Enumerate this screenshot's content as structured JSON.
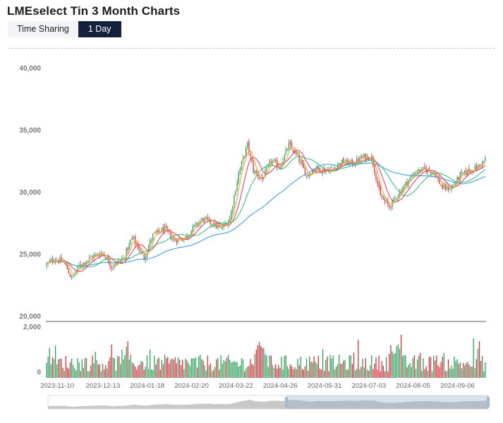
{
  "title": "LMEselect Tin 3 Month Charts",
  "tabs": [
    {
      "label": "Time Sharing",
      "active": false
    },
    {
      "label": "1 Day",
      "active": true
    }
  ],
  "colors": {
    "up": "#2ca05a",
    "down": "#dc2f3a",
    "ma5": "#f5a623",
    "ma10": "#e0407a",
    "ma20": "#35c47a",
    "ma60": "#3aa0e8",
    "active_tab_bg": "#13213f"
  },
  "chart_data": [
    {
      "type": "candlestick",
      "title": "",
      "y_ticks": [
        "40,000",
        "35,000",
        "30,000",
        "25,000",
        "20,000"
      ],
      "y_tick_values": [
        40000,
        35000,
        30000,
        25000,
        20000
      ],
      "ylim": [
        20000,
        40000
      ],
      "x_ticks": [
        "2023-11-10",
        "2023-12-13",
        "2024-01-18",
        "2024-02-20",
        "2024-03-22",
        "2024-04-26",
        "2024-05-31",
        "2024-07-03",
        "2024-08-05",
        "2024-09-06"
      ],
      "close_anchors": [
        [
          0,
          24100
        ],
        [
          5,
          24600
        ],
        [
          12,
          24300
        ],
        [
          17,
          23000
        ],
        [
          22,
          24000
        ],
        [
          30,
          24700
        ],
        [
          38,
          25100
        ],
        [
          44,
          24000
        ],
        [
          52,
          24600
        ],
        [
          58,
          26300
        ],
        [
          66,
          24700
        ],
        [
          72,
          26500
        ],
        [
          80,
          27000
        ],
        [
          86,
          26100
        ],
        [
          94,
          26300
        ],
        [
          100,
          27200
        ],
        [
          106,
          27800
        ],
        [
          112,
          27500
        ],
        [
          118,
          27000
        ],
        [
          124,
          27800
        ],
        [
          130,
          31500
        ],
        [
          136,
          33800
        ],
        [
          140,
          31700
        ],
        [
          146,
          31000
        ],
        [
          152,
          32500
        ],
        [
          158,
          32000
        ],
        [
          164,
          33800
        ],
        [
          170,
          32800
        ],
        [
          176,
          31300
        ],
        [
          182,
          31900
        ],
        [
          188,
          31700
        ],
        [
          194,
          31900
        ],
        [
          200,
          32400
        ],
        [
          208,
          32300
        ],
        [
          214,
          32800
        ],
        [
          220,
          32800
        ],
        [
          226,
          29600
        ],
        [
          232,
          28800
        ],
        [
          238,
          29800
        ],
        [
          244,
          30800
        ],
        [
          250,
          31600
        ],
        [
          256,
          31800
        ],
        [
          262,
          31600
        ],
        [
          268,
          30300
        ],
        [
          274,
          30300
        ],
        [
          280,
          31300
        ],
        [
          286,
          31700
        ],
        [
          292,
          32000
        ],
        [
          297,
          32600
        ]
      ],
      "volume_ylim": [
        0,
        2000
      ],
      "volume_ticks": [
        "2,000",
        "0"
      ],
      "moving_averages": [
        "ma5",
        "ma10",
        "ma20",
        "ma60"
      ]
    }
  ]
}
